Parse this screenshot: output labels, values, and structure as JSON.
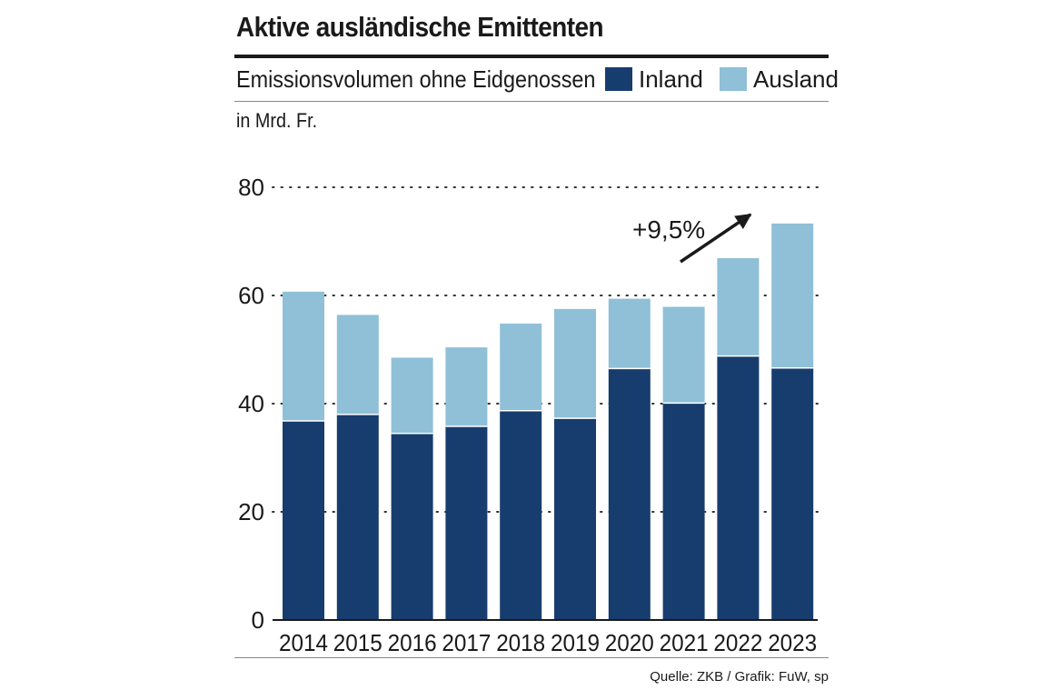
{
  "header": {
    "title": "Aktive ausländische Emittenten",
    "subtitle": "Emissionsvolumen ohne Eidgenossen",
    "unit": "in Mrd. Fr."
  },
  "footer": {
    "source": "Quelle: ZKB / Grafik: FuW, sp"
  },
  "colors": {
    "inland": "#173d6e",
    "ausland": "#8fc0d8",
    "text": "#1a1a1a",
    "grid": "#333333"
  },
  "chart_data": {
    "type": "bar",
    "stacked": true,
    "title": "Aktive ausländische Emittenten",
    "subtitle": "Emissionsvolumen ohne Eidgenossen",
    "ylabel": "in Mrd. Fr.",
    "xlabel": "",
    "ylim": [
      0,
      80
    ],
    "yticks": [
      0,
      20,
      40,
      60,
      80
    ],
    "grid": true,
    "legend_position": "top-right",
    "categories": [
      "2014",
      "2015",
      "2016",
      "2017",
      "2018",
      "2019",
      "2020",
      "2021",
      "2022",
      "2023"
    ],
    "series": [
      {
        "name": "Inland",
        "values": [
          36.8,
          38.0,
          34.5,
          35.8,
          38.7,
          37.3,
          46.5,
          40.1,
          48.8,
          46.6
        ]
      },
      {
        "name": "Ausland",
        "values": [
          23.9,
          18.4,
          14.0,
          14.6,
          16.1,
          20.2,
          12.9,
          17.8,
          18.1,
          26.7
        ]
      }
    ],
    "annotation": {
      "text": "+9,5%",
      "target_year": "2023"
    }
  }
}
